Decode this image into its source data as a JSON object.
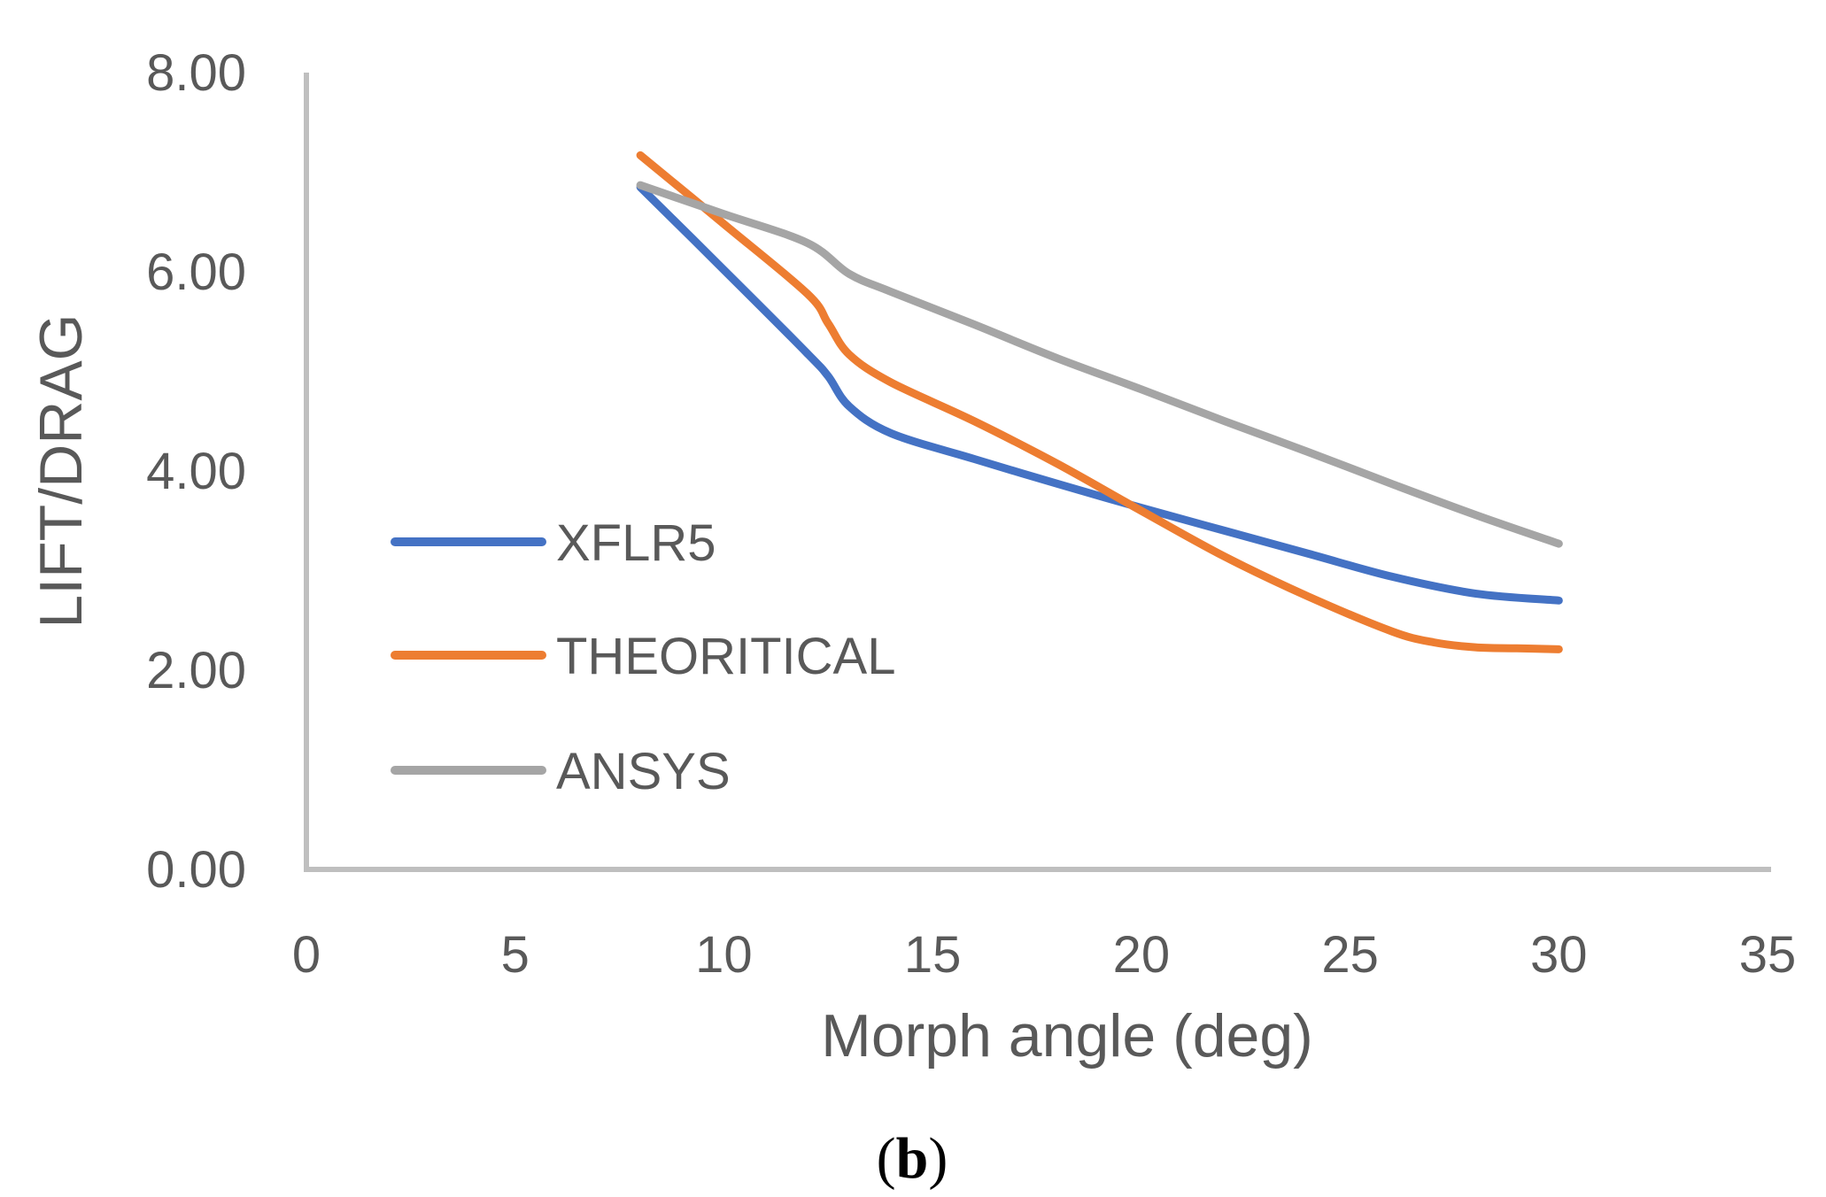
{
  "chart_data": {
    "type": "line",
    "xlabel": "Morph angle (deg)",
    "ylabel": "LIFT/DRAG",
    "xlim": [
      0,
      35
    ],
    "ylim": [
      0,
      8
    ],
    "x_ticks": [
      "0",
      "5",
      "10",
      "15",
      "20",
      "25",
      "30",
      "35"
    ],
    "y_ticks": [
      "0.00",
      "2.00",
      "4.00",
      "6.00",
      "8.00"
    ],
    "grid": false,
    "legend_position": "left",
    "panel_label": {
      "open": "(",
      "letter": "b",
      "close": ")"
    },
    "series": [
      {
        "name": "XFLR5",
        "color": "#4472C4",
        "x": [
          8,
          10,
          12,
          12.5,
          13,
          14,
          16,
          18,
          20,
          22,
          24,
          26,
          28,
          30
        ],
        "y": [
          6.85,
          6.02,
          5.18,
          4.95,
          4.65,
          4.38,
          4.12,
          3.87,
          3.63,
          3.4,
          3.17,
          2.94,
          2.77,
          2.7
        ]
      },
      {
        "name": "THEORITICAL",
        "color": "#ED7D31",
        "x": [
          8,
          10,
          12,
          12.5,
          13,
          14,
          16,
          18,
          20,
          22,
          24,
          26,
          27,
          28,
          29,
          30
        ],
        "y": [
          7.17,
          6.48,
          5.78,
          5.48,
          5.17,
          4.89,
          4.5,
          4.07,
          3.6,
          3.14,
          2.74,
          2.39,
          2.28,
          2.23,
          2.22,
          2.21
        ]
      },
      {
        "name": "ANSYS",
        "color": "#A5A5A5",
        "x": [
          8,
          10,
          12,
          13,
          14,
          16,
          18,
          20,
          22,
          24,
          26,
          28,
          30
        ],
        "y": [
          6.87,
          6.58,
          6.29,
          5.98,
          5.8,
          5.47,
          5.13,
          4.82,
          4.5,
          4.19,
          3.87,
          3.56,
          3.27
        ]
      }
    ]
  }
}
